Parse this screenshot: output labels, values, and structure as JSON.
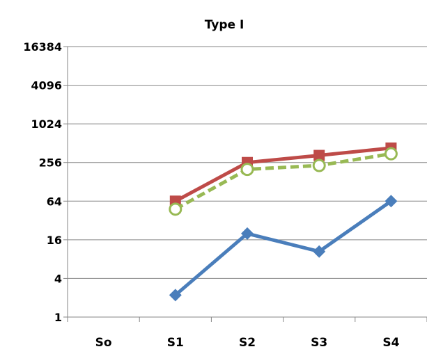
{
  "chart_data": {
    "type": "line",
    "title": "Type I",
    "xlabel": "",
    "ylabel": "",
    "y_scale": "log2",
    "ylim": [
      1,
      16384
    ],
    "y_ticks": [
      "1",
      "4",
      "16",
      "64",
      "256",
      "1024",
      "4096",
      "16384"
    ],
    "categories": [
      "S0",
      "S1",
      "S2",
      "S3",
      "S4"
    ],
    "category_labels": [
      "So",
      "S1",
      "S2",
      "S3",
      "S4"
    ],
    "grid": "horizontal",
    "legend": "none",
    "series": [
      {
        "values": [
          null,
          2.2,
          20,
          10.5,
          64
        ],
        "color": "#4a7ebb",
        "marker": "diamond",
        "dash": "solid"
      },
      {
        "values": [
          null,
          64,
          256,
          330,
          430
        ],
        "color": "#be4b48",
        "marker": "square",
        "dash": "solid"
      },
      {
        "values": [
          null,
          48,
          200,
          230,
          350
        ],
        "color": "#98b954",
        "marker": "circle-open",
        "dash": "dashed"
      }
    ]
  }
}
